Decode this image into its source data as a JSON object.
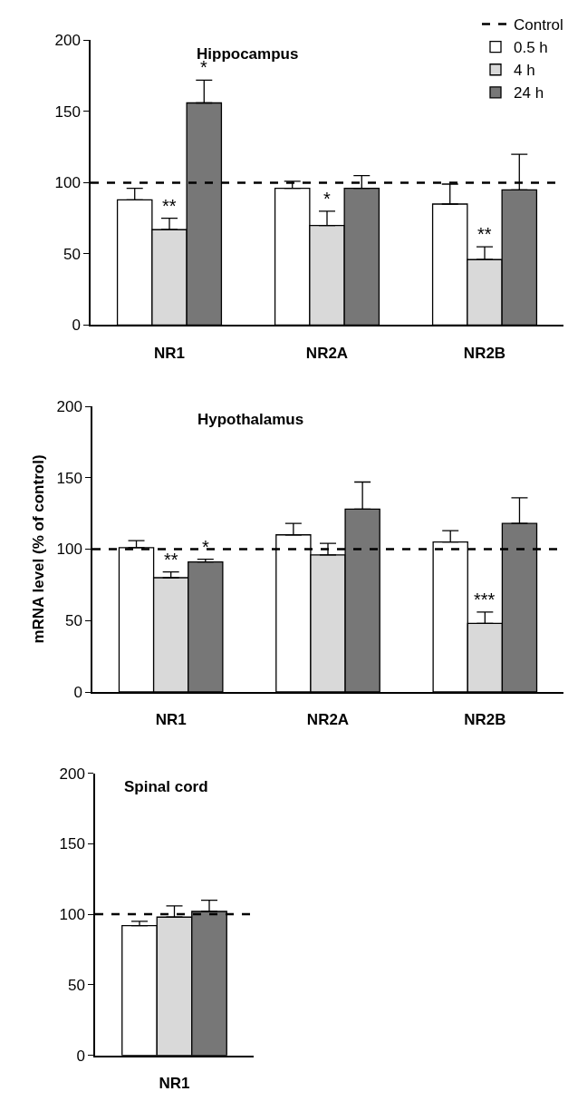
{
  "chart_data": [
    {
      "type": "bar",
      "title": "Hippocampus",
      "categories": [
        "NR1",
        "NR2A",
        "NR2B"
      ],
      "ylim": [
        0,
        200
      ],
      "yticks": [
        0,
        50,
        100,
        150,
        200
      ],
      "legend": "top right",
      "ref_lines": [
        {
          "axis": "y",
          "value": 100,
          "label": "Control",
          "color": "#000000",
          "line_style": "dashed"
        }
      ],
      "series": [
        {
          "name": "0.5 h",
          "color": "#ffffff",
          "values": [
            88,
            96,
            85
          ],
          "errors": [
            [
              88,
              96
            ],
            [
              96,
              101
            ],
            [
              85,
              99
            ]
          ],
          "value_labels": [
            null,
            null,
            null
          ]
        },
        {
          "name": "4 h",
          "color": "#d9d9d9",
          "values": [
            67,
            70,
            46
          ],
          "errors": [
            [
              67,
              75
            ],
            [
              70,
              80
            ],
            [
              46,
              55
            ]
          ],
          "value_labels": [
            "**",
            "*",
            "**"
          ]
        },
        {
          "name": "24 h",
          "color": "#777777",
          "values": [
            156,
            96,
            95
          ],
          "errors": [
            [
              156,
              172
            ],
            [
              96,
              105
            ],
            [
              95,
              120
            ]
          ],
          "value_labels": [
            "*",
            null,
            null
          ]
        }
      ]
    },
    {
      "type": "bar",
      "title": "Hypothalamus",
      "ylabel": "mRNA level (% of control)",
      "categories": [
        "NR1",
        "NR2A",
        "NR2B"
      ],
      "ylim": [
        0,
        200
      ],
      "yticks": [
        0,
        50,
        100,
        150,
        200
      ],
      "ref_lines": [
        {
          "axis": "y",
          "value": 100,
          "color": "#000000",
          "line_style": "dashed"
        }
      ],
      "series": [
        {
          "color": "#ffffff",
          "values": [
            101,
            110,
            105
          ],
          "errors": [
            [
              101,
              106
            ],
            [
              110,
              118
            ],
            [
              105,
              113
            ]
          ],
          "value_labels": [
            null,
            null,
            null
          ]
        },
        {
          "color": "#d9d9d9",
          "values": [
            80,
            96,
            48
          ],
          "errors": [
            [
              80,
              84
            ],
            [
              96,
              104
            ],
            [
              48,
              56
            ]
          ],
          "value_labels": [
            "**",
            null,
            "***"
          ]
        },
        {
          "color": "#777777",
          "values": [
            91,
            128,
            118
          ],
          "errors": [
            [
              91,
              93
            ],
            [
              128,
              147
            ],
            [
              118,
              136
            ]
          ],
          "value_labels": [
            "*",
            null,
            null
          ]
        }
      ]
    },
    {
      "type": "bar",
      "title": "Spinal cord",
      "categories": [
        "NR1"
      ],
      "ylim": [
        0,
        200
      ],
      "yticks": [
        0,
        50,
        100,
        150,
        200
      ],
      "ref_lines": [
        {
          "axis": "y",
          "value": 100,
          "color": "#000000",
          "line_style": "dashed"
        }
      ],
      "series": [
        {
          "color": "#ffffff",
          "values": [
            92
          ],
          "errors": [
            [
              92,
              95
            ]
          ]
        },
        {
          "color": "#d9d9d9",
          "values": [
            98
          ],
          "errors": [
            [
              98,
              106
            ]
          ]
        },
        {
          "color": "#777777",
          "values": [
            102
          ],
          "errors": [
            [
              102,
              110
            ]
          ]
        }
      ]
    }
  ]
}
